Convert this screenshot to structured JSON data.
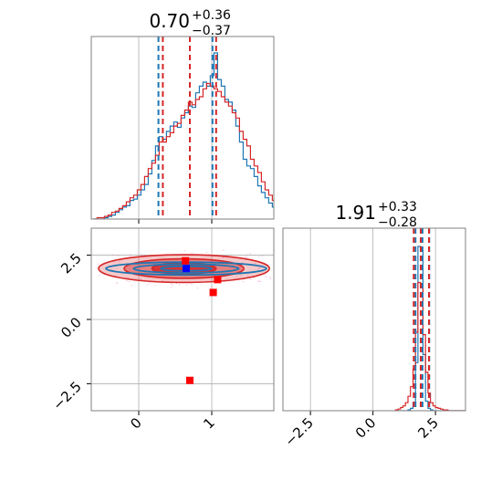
{
  "chart_data": {
    "type": "corner-plot",
    "colors": {
      "blue": "#1f77b4",
      "red": "#d62728",
      "marker_red": "#ff0000",
      "marker_blue": "#0000ff",
      "grid": "#b0b0b0",
      "scatter": "#e377c2"
    },
    "panels": [
      {
        "id": "hist-x",
        "type": "step-histogram",
        "title": {
          "main": "0.70",
          "sup": "+0.36",
          "sub": "−0.37"
        },
        "xlim": [
          -0.65,
          1.85
        ],
        "quantile_lines": {
          "blue": [
            0.27,
            0.7,
            1.01
          ],
          "red": [
            0.33,
            0.7,
            1.06
          ]
        },
        "series": [
          {
            "name": "",
            "color": "#1f77b4",
            "bin_start": -0.62,
            "bin_width": 0.05,
            "values": [
              0,
              0,
              0,
              1,
              2,
              3,
              5,
              7,
              9,
              10,
              14,
              15,
              18,
              22,
              26,
              34,
              44,
              55,
              62,
              60,
              66,
              70,
              73,
              69,
              76,
              80,
              85,
              84,
              95,
              100,
              103,
              100,
              108,
              125,
              105,
              100,
              90,
              88,
              82,
              70,
              58,
              45,
              40,
              38,
              32,
              25,
              20,
              16,
              12,
              9,
              6,
              4,
              2,
              1,
              0
            ]
          },
          {
            "name": "",
            "color": "#d62728",
            "bin_start": -0.62,
            "bin_width": 0.05,
            "values": [
              0,
              1,
              1,
              2,
              3,
              5,
              6,
              8,
              10,
              13,
              16,
              18,
              22,
              26,
              32,
              38,
              42,
              48,
              58,
              58,
              62,
              65,
              70,
              72,
              78,
              82,
              88,
              86,
              90,
              92,
              98,
              102,
              100,
              98,
              96,
              92,
              88,
              85,
              80,
              76,
              66,
              60,
              55,
              45,
              40,
              35,
              28,
              22,
              18,
              14,
              10,
              7,
              4,
              2,
              1
            ]
          }
        ]
      },
      {
        "id": "hist-y",
        "type": "step-histogram",
        "title": {
          "main": "1.91",
          "sup": "+0.33",
          "sub": "−0.28"
        },
        "xlim": [
          -3.6,
          3.7
        ],
        "xticks": [
          "−2.5",
          "0.0",
          "2.5"
        ],
        "quantile_lines": {
          "blue": [
            1.7,
            1.98,
            2.25
          ],
          "red": [
            1.63,
            1.91,
            2.24
          ]
        },
        "series": [
          {
            "name": "",
            "color": "#1f77b4",
            "bin_start": 0.9,
            "bin_width": 0.1,
            "values": [
              0,
              0,
              0,
              0,
              0,
              1,
              3,
              10,
              60,
              205,
              200,
              70,
              12,
              3,
              1,
              0,
              0,
              0,
              0,
              0,
              0,
              0,
              0,
              0,
              0,
              0,
              0,
              0
            ]
          },
          {
            "name": "",
            "color": "#d62728",
            "bin_start": 0.9,
            "bin_width": 0.1,
            "values": [
              1,
              2,
              4,
              6,
              10,
              18,
              30,
              52,
              98,
              160,
              155,
              95,
              48,
              22,
              10,
              6,
              4,
              3,
              2,
              1,
              1,
              0,
              0,
              0,
              0,
              0,
              0,
              0
            ]
          }
        ]
      },
      {
        "id": "scatter-2d",
        "type": "contour-2d",
        "xlim": [
          -0.65,
          1.85
        ],
        "ylim": [
          -3.55,
          3.55
        ],
        "xticks": [
          "0",
          "1"
        ],
        "yticks": [
          "−2.5",
          "0.0",
          "2.5"
        ],
        "red_contours": [
          {
            "cx": 0.62,
            "cy": 1.98,
            "rx": 1.17,
            "ry": 0.54,
            "fill_opacity": 0.25
          },
          {
            "cx": 0.62,
            "cy": 1.98,
            "rx": 0.82,
            "ry": 0.38,
            "fill_opacity": 0.45
          },
          {
            "cx": 0.62,
            "cy": 1.98,
            "rx": 0.44,
            "ry": 0.22,
            "fill_opacity": 0.85
          }
        ],
        "blue_contours": [
          {
            "cx": 0.65,
            "cy": 1.98,
            "rx": 1.1,
            "ry": 0.25
          },
          {
            "cx": 0.65,
            "cy": 1.98,
            "rx": 0.72,
            "ry": 0.17
          },
          {
            "cx": 0.65,
            "cy": 1.98,
            "rx": 0.35,
            "ry": 0.09
          }
        ],
        "red_markers": [
          {
            "x": 0.64,
            "y": 2.28
          },
          {
            "x": 1.02,
            "y": 1.05
          },
          {
            "x": 1.08,
            "y": 1.55
          },
          {
            "x": 0.7,
            "y": -2.37
          }
        ],
        "blue_markers": [
          {
            "x": 0.65,
            "y": 1.98
          }
        ]
      }
    ]
  }
}
